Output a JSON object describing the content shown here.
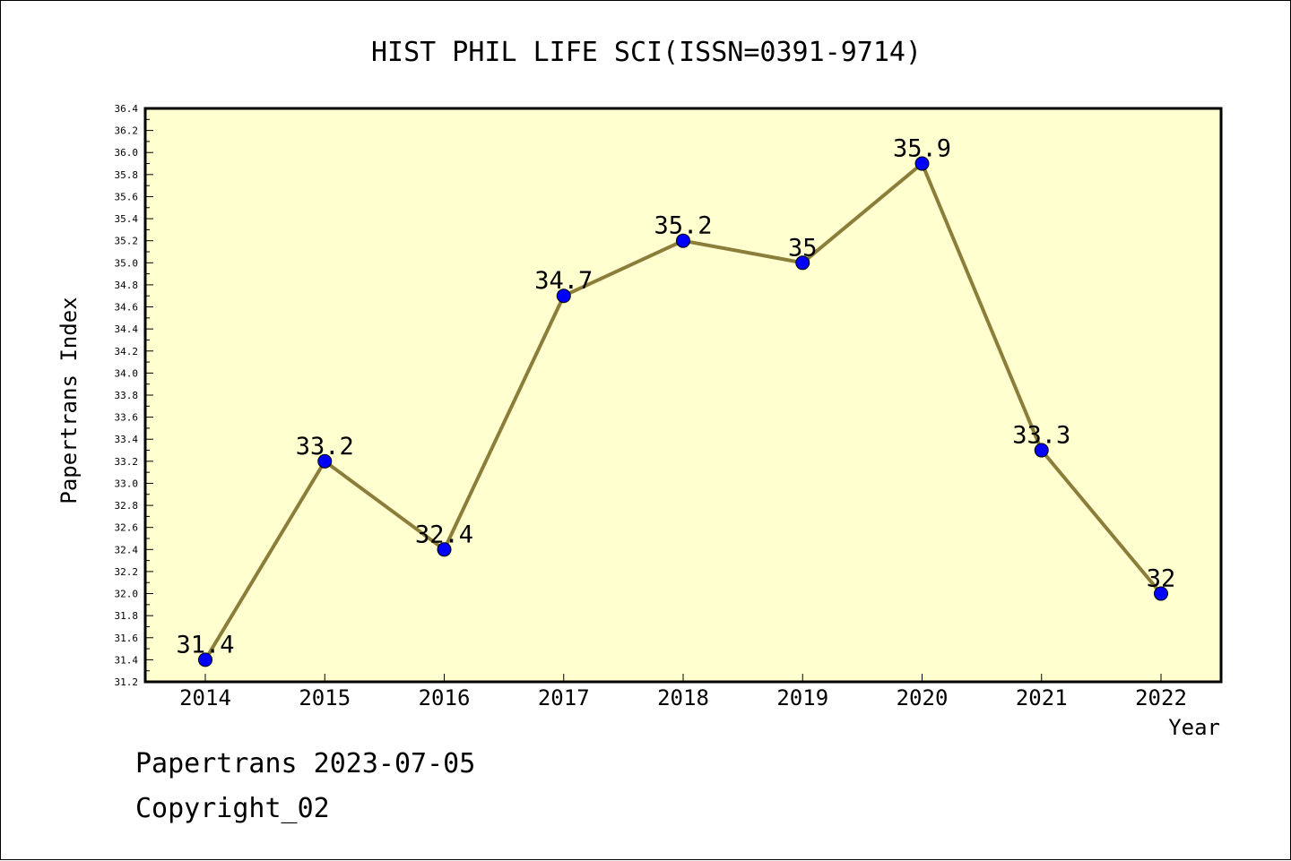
{
  "chart_data": {
    "type": "line",
    "title": "HIST PHIL LIFE SCI(ISSN=0391-9714)",
    "xlabel": "Year",
    "ylabel": "Papertrans Index",
    "x": [
      "2014",
      "2015",
      "2016",
      "2017",
      "2018",
      "2019",
      "2020",
      "2021",
      "2022"
    ],
    "series": [
      {
        "values": [
          31.4,
          33.2,
          32.4,
          34.7,
          35.2,
          35,
          35.9,
          33.3,
          32
        ],
        "labels": [
          "31.4",
          "33.2",
          "32.4",
          "34.7",
          "35.2",
          "35",
          "35.9",
          "33.3",
          "32"
        ]
      }
    ],
    "ylim": [
      31.2,
      36.4
    ],
    "ytick_step": 0.2,
    "grid": false,
    "legend": "none",
    "colors": {
      "plot_background": "#ffffd0",
      "line": "#8b7d3a",
      "marker": "#0000ff"
    }
  },
  "footer": {
    "line1": "Papertrans 2023-07-05",
    "line2": "Copyright_02"
  }
}
